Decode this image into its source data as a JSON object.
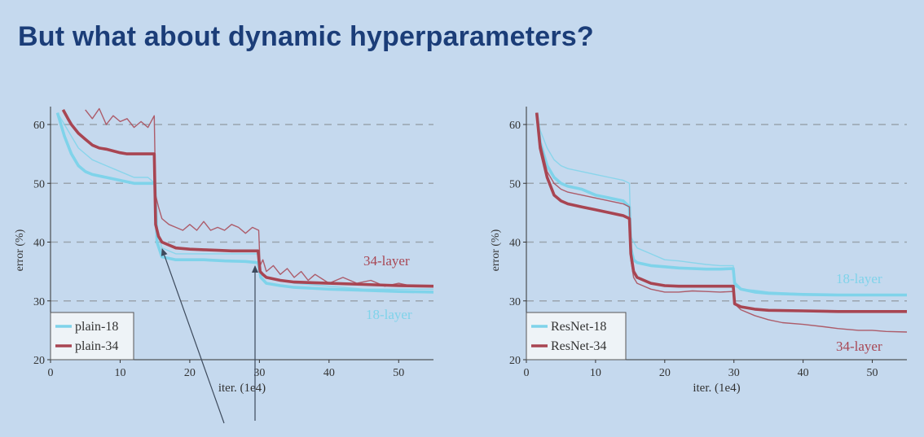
{
  "slide": {
    "title": "But what about dynamic hyperparameters?"
  },
  "colors": {
    "title": "#1b3d78",
    "light_series": "#7fd3ea",
    "dark_series": "#a84552",
    "grid": "#9aa4ae"
  },
  "chart_data": [
    {
      "type": "line",
      "xlabel": "iter. (1e4)",
      "ylabel": "error (%)",
      "xlim": [
        0,
        55
      ],
      "ylim": [
        20,
        62
      ],
      "xticks": [
        0,
        10,
        20,
        30,
        40,
        50
      ],
      "yticks": [
        20,
        30,
        40,
        50,
        60
      ],
      "grid": "horizontal dashed",
      "legend_position": "bottom-left",
      "legend": [
        "plain-18",
        "plain-34"
      ],
      "annotations": [
        "34-layer",
        "18-layer"
      ],
      "series": [
        {
          "name": "plain-18",
          "style": "train-thin",
          "x": [
            1,
            2,
            3,
            4,
            5,
            6,
            8,
            10,
            12,
            14,
            15.0,
            15.3,
            16,
            18,
            20,
            22,
            25,
            28,
            29.8,
            30.2,
            31,
            33,
            35,
            40,
            45,
            50,
            55
          ],
          "y": [
            62,
            60,
            58,
            56,
            55,
            54,
            53,
            52,
            51,
            51,
            50,
            42,
            39,
            38,
            38,
            38,
            38,
            38,
            38,
            35,
            34,
            33.5,
            33,
            32.5,
            32,
            32,
            32
          ]
        },
        {
          "name": "plain-18",
          "style": "val-bold",
          "x": [
            1,
            2,
            3,
            4,
            5,
            6,
            8,
            10,
            12,
            14,
            15.0,
            15.3,
            16,
            18,
            20,
            22,
            25,
            28,
            29.8,
            30.2,
            31,
            33,
            35,
            40,
            45,
            50,
            55
          ],
          "y": [
            62,
            58,
            55,
            53,
            52,
            51.5,
            51,
            50.5,
            50,
            50,
            50,
            40,
            37.5,
            37,
            37,
            37,
            36.8,
            36.7,
            36.5,
            34,
            33,
            32.6,
            32.3,
            32,
            31.8,
            31.6,
            31.5
          ]
        },
        {
          "name": "plain-34",
          "style": "train-thin",
          "x": [
            5,
            6,
            7,
            8,
            9,
            10,
            11,
            12,
            13,
            14,
            14.9,
            15.1,
            15.5,
            16,
            17,
            18,
            19,
            20,
            21,
            22,
            23,
            24,
            25,
            26,
            27,
            28,
            29,
            29.9,
            30.1,
            30.5,
            31,
            32,
            33,
            34,
            35,
            36,
            37,
            38,
            40,
            42,
            44,
            46,
            48,
            50,
            52,
            55
          ],
          "y": [
            62.5,
            61,
            62.7,
            60,
            61.5,
            60.5,
            61,
            59.5,
            60.5,
            59.5,
            61.5,
            48,
            46,
            44,
            43,
            42.5,
            42,
            43,
            42,
            43.5,
            42,
            42.5,
            42,
            43,
            42.5,
            41.5,
            42.5,
            42,
            36,
            37,
            35,
            36,
            34.5,
            35.5,
            34,
            35,
            33.5,
            34.5,
            33,
            34,
            33,
            33.5,
            32.5,
            33,
            32.5,
            32.5
          ]
        },
        {
          "name": "plain-34",
          "style": "val-bold",
          "x": [
            1.8,
            2.5,
            3,
            4,
            5,
            6,
            7,
            8,
            9,
            10,
            11,
            12,
            13,
            14,
            14.9,
            15.1,
            15.5,
            16,
            17,
            18,
            20,
            22,
            24,
            26,
            28,
            29.8,
            30.1,
            30.5,
            31,
            33,
            35,
            40,
            45,
            50,
            55
          ],
          "y": [
            62.5,
            61,
            60,
            58.5,
            57.5,
            56.5,
            56,
            55.8,
            55.5,
            55.2,
            55,
            55,
            55,
            55,
            55,
            43,
            41,
            40,
            39.5,
            39,
            38.8,
            38.7,
            38.6,
            38.5,
            38.5,
            38.5,
            35,
            34.5,
            34,
            33.5,
            33.2,
            33,
            32.8,
            32.6,
            32.5
          ]
        }
      ]
    },
    {
      "type": "line",
      "xlabel": "iter. (1e4)",
      "ylabel": "error (%)",
      "xlim": [
        0,
        55
      ],
      "ylim": [
        20,
        62
      ],
      "xticks": [
        0,
        10,
        20,
        30,
        40,
        50
      ],
      "yticks": [
        20,
        30,
        40,
        50,
        60
      ],
      "grid": "horizontal dashed",
      "legend_position": "bottom-left",
      "legend": [
        "ResNet-18",
        "ResNet-34"
      ],
      "annotations": [
        "18-layer",
        "34-layer"
      ],
      "series": [
        {
          "name": "ResNet-18",
          "style": "train-thin",
          "x": [
            1.5,
            2,
            3,
            4,
            5,
            6,
            8,
            10,
            12,
            14,
            14.9,
            15.1,
            15.5,
            16,
            18,
            20,
            22,
            24,
            26,
            28,
            29.9,
            30.1,
            31,
            33,
            35,
            40,
            45,
            50,
            55
          ],
          "y": [
            62,
            59,
            56,
            54,
            53,
            52.5,
            52,
            51.5,
            51,
            50.5,
            50,
            41,
            40,
            39,
            38,
            37,
            36.8,
            36.5,
            36.2,
            36,
            36,
            32.5,
            32,
            31.8,
            31.5,
            31.2,
            31,
            31,
            31
          ]
        },
        {
          "name": "ResNet-18",
          "style": "val-bold",
          "x": [
            1.5,
            2,
            3,
            4,
            5,
            6,
            8,
            10,
            12,
            14,
            14.9,
            15.1,
            15.5,
            16,
            18,
            20,
            22,
            24,
            26,
            28,
            29.9,
            30.1,
            31,
            33,
            35,
            40,
            45,
            50,
            55
          ],
          "y": [
            62,
            57,
            53,
            51,
            50,
            49.5,
            49,
            48,
            47.5,
            47,
            46,
            39,
            37,
            36.5,
            36,
            35.8,
            35.6,
            35.5,
            35.4,
            35.4,
            35.5,
            33,
            32,
            31.5,
            31.3,
            31.1,
            31,
            31,
            31
          ]
        },
        {
          "name": "ResNet-34",
          "style": "train-thin",
          "x": [
            1.5,
            2,
            3,
            4,
            5,
            6,
            8,
            10,
            12,
            14,
            14.9,
            15.1,
            15.5,
            16,
            18,
            20,
            22,
            24,
            26,
            28,
            29.9,
            30.1,
            31,
            33,
            35,
            37,
            40,
            43,
            45,
            48,
            50,
            52,
            55
          ],
          "y": [
            62,
            57,
            52,
            50,
            49,
            48.5,
            48,
            47.5,
            47,
            46.5,
            46,
            37,
            34,
            33,
            32,
            31.5,
            31.5,
            31.7,
            31.6,
            31.5,
            31.6,
            29.5,
            28.5,
            27.5,
            26.8,
            26.3,
            26,
            25.6,
            25.3,
            25,
            25,
            24.8,
            24.7
          ]
        },
        {
          "name": "ResNet-34",
          "style": "val-bold",
          "x": [
            1.5,
            2,
            3,
            4,
            5,
            6,
            8,
            10,
            12,
            14,
            14.9,
            15.1,
            15.5,
            16,
            18,
            20,
            22,
            24,
            26,
            28,
            29.9,
            30.1,
            31,
            33,
            35,
            40,
            45,
            50,
            55
          ],
          "y": [
            62,
            56,
            51,
            48,
            47,
            46.5,
            46,
            45.5,
            45,
            44.5,
            44,
            38,
            35,
            34,
            33,
            32.6,
            32.5,
            32.5,
            32.5,
            32.5,
            32.5,
            29.5,
            29,
            28.6,
            28.4,
            28.3,
            28.2,
            28.2,
            28.2
          ]
        }
      ]
    }
  ]
}
